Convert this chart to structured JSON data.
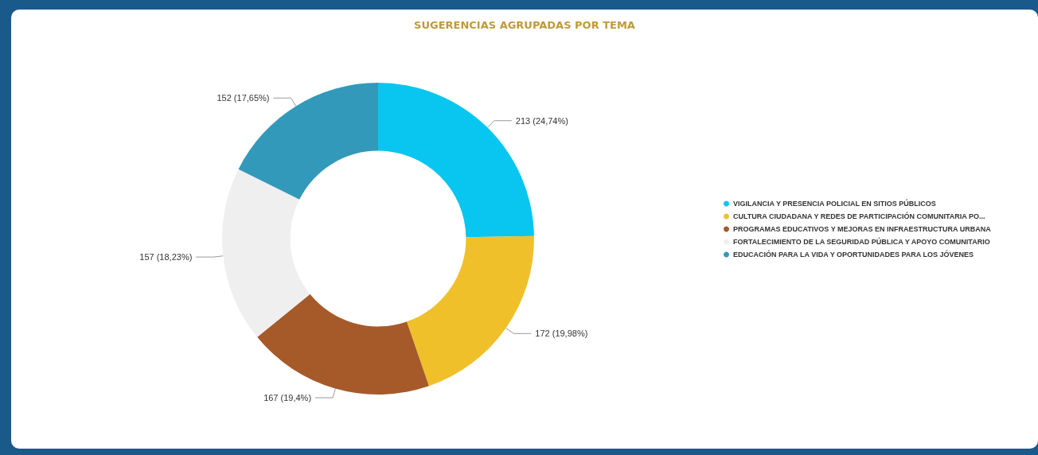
{
  "chart_data": {
    "type": "donut",
    "title": "SUGERENCIAS AGRUPADAS POR TEMA",
    "categories": [
      "VIGILANCIA Y PRESENCIA POLICIAL EN SITIOS PÚBLICOS",
      "CULTURA CIUDADANA Y REDES DE PARTICIPACIÓN COMUNITARIA PO...",
      "PROGRAMAS EDUCATIVOS Y MEJORAS EN INFRAESTRUCTURA URBANA",
      "FORTALECIMIENTO DE LA SEGURIDAD PÚBLICA Y APOYO COMUNITARIO",
      "EDUCACIÓN PARA LA VIDA Y OPORTUNIDADES PARA LOS JÓVENES"
    ],
    "values": [
      213,
      172,
      167,
      157,
      152
    ],
    "colors": [
      "#08c6f0",
      "#f0c02a",
      "#a65a2a",
      "#efefef",
      "#3399bb"
    ],
    "value_labels": [
      "213 (24,74%)",
      "172 (19,98%)",
      "167 (19,4%)",
      "157 (18,23%)",
      "152 (17,65%)"
    ],
    "legend": "right"
  }
}
